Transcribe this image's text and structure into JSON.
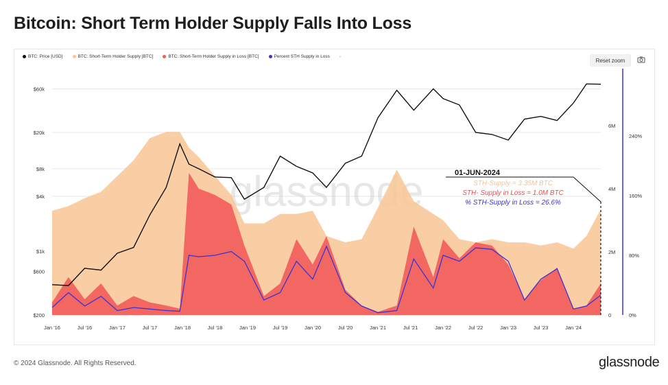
{
  "title": "Bitcoin: Short Term Holder Supply Falls Into Loss",
  "legend": {
    "items": [
      {
        "label": "BTC: Price [USD]",
        "color": "#111111"
      },
      {
        "label": "BTC: Short-Term Holder Supply [BTC]",
        "color": "#f9c694"
      },
      {
        "label": "BTC: Short-Term Holder Supply in Loss [BTC]",
        "color": "#f25c5c"
      },
      {
        "label": "Percent STH Supply in Loss",
        "color": "#3b32d4"
      }
    ],
    "more": "-"
  },
  "controls": {
    "reset_zoom": "Reset zoom",
    "camera_icon": "camera-icon"
  },
  "watermark": "glassnode",
  "annotation": {
    "date": "01-JUN-2024",
    "line1": "STH-Supply = 3.35M BTC",
    "line2": "STH- Supply in Loss = 1.0M BTC",
    "line3": "% STH-Supply in Loss = 26.6%"
  },
  "footer": {
    "copyright": "© 2024 Glassnode. All Rights Reserved.",
    "logo": "glassnode"
  },
  "chart_data": {
    "type": "area",
    "x_ticks": [
      "Jan '16",
      "Jul '16",
      "Jan '17",
      "Jul '17",
      "Jan '18",
      "Jul '18",
      "Jan '19",
      "Jul '19",
      "Jan '20",
      "Jul '20",
      "Jan '21",
      "Jul '21",
      "Jan '22",
      "Jul '22",
      "Jan '23",
      "Jul '23",
      "Jan '24"
    ],
    "y_left_ticks": [
      "$60k",
      "$20k",
      "$8k",
      "$4k",
      "$1k",
      "$600",
      "$200"
    ],
    "y_left_scale": "log",
    "y_mid_ticks": [
      "6M",
      "4M",
      "2M",
      "0"
    ],
    "y_right_ticks": [
      "240%",
      "160%",
      "80%",
      "0%"
    ],
    "x": [
      2016.0,
      2016.25,
      2016.5,
      2016.75,
      2017.0,
      2017.25,
      2017.5,
      2017.75,
      2017.96,
      2018.1,
      2018.25,
      2018.5,
      2018.75,
      2018.95,
      2019.25,
      2019.5,
      2019.75,
      2020.0,
      2020.21,
      2020.5,
      2020.75,
      2021.0,
      2021.29,
      2021.55,
      2021.85,
      2022.0,
      2022.25,
      2022.5,
      2022.75,
      2023.0,
      2023.25,
      2023.5,
      2023.75,
      2024.0,
      2024.2,
      2024.42
    ],
    "series": [
      {
        "name": "BTC: Price [USD]",
        "axis": "left",
        "color": "#111111",
        "values": [
          430,
          420,
          650,
          620,
          950,
          1100,
          2500,
          5000,
          15000,
          9000,
          8000,
          6500,
          6400,
          3700,
          5000,
          11000,
          8500,
          7200,
          5000,
          9200,
          11000,
          29000,
          58000,
          35000,
          60000,
          47000,
          40000,
          20000,
          19000,
          16500,
          28000,
          30000,
          27000,
          42000,
          68000,
          67500
        ]
      },
      {
        "name": "BTC: Short-Term Holder Supply [BTC]",
        "axis": "mid",
        "unit": "M BTC",
        "color": "#f9c694",
        "values": [
          3.3,
          3.45,
          3.7,
          3.9,
          4.4,
          4.9,
          5.6,
          5.8,
          5.8,
          5.3,
          5.0,
          4.4,
          3.8,
          2.9,
          2.9,
          3.2,
          3.2,
          3.3,
          2.5,
          2.3,
          2.4,
          3.4,
          4.6,
          3.6,
          3.2,
          3.0,
          2.4,
          2.3,
          2.4,
          2.3,
          2.3,
          2.2,
          2.3,
          2.1,
          2.5,
          3.35
        ]
      },
      {
        "name": "BTC: Short-Term Holder Supply in Loss [BTC]",
        "axis": "mid",
        "unit": "M BTC",
        "color": "#f25c5c",
        "values": [
          0.4,
          1.2,
          0.5,
          1.0,
          0.3,
          0.6,
          0.4,
          0.3,
          0.2,
          4.5,
          4.0,
          3.8,
          3.5,
          2.2,
          0.6,
          1.0,
          2.4,
          1.6,
          2.5,
          0.8,
          0.3,
          0.1,
          0.3,
          2.8,
          1.2,
          2.4,
          1.8,
          2.3,
          2.2,
          1.6,
          0.5,
          1.1,
          1.5,
          0.2,
          0.3,
          1.0
        ]
      },
      {
        "name": "Percent STH Supply in Loss",
        "axis": "right",
        "unit": "%",
        "color": "#3b32d4",
        "values": [
          10,
          30,
          12,
          25,
          6,
          10,
          8,
          6,
          5,
          80,
          78,
          80,
          85,
          72,
          20,
          30,
          72,
          48,
          92,
          30,
          12,
          3,
          6,
          75,
          36,
          80,
          72,
          90,
          88,
          72,
          20,
          48,
          62,
          8,
          12,
          26.6
        ]
      }
    ]
  }
}
